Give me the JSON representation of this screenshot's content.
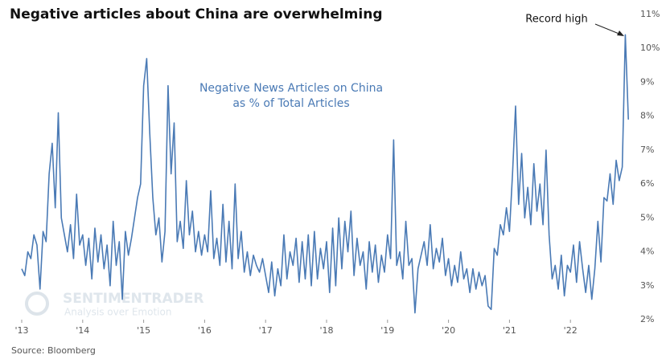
{
  "chart_data": {
    "type": "line",
    "title": "Negative articles about China are overwhelming",
    "subtitle_lines": [
      "Negative News Articles on China",
      "as % of Total Articles"
    ],
    "annotation": "Record high",
    "source": "Source: Bloomberg",
    "watermark": [
      "SENTIMENTRADER",
      "Analysis over Emotion"
    ],
    "color": "#4a7ab5",
    "grid": false,
    "x": [
      2013,
      2013.05,
      2013.1,
      2013.15,
      2013.2,
      2013.25,
      2013.3,
      2013.35,
      2013.4,
      2013.45,
      2013.5,
      2013.55,
      2013.6,
      2013.65,
      2013.7,
      2013.75,
      2013.8,
      2013.85,
      2013.9,
      2013.95,
      2014,
      2014.05,
      2014.1,
      2014.15,
      2014.2,
      2014.25,
      2014.3,
      2014.35,
      2014.4,
      2014.45,
      2014.5,
      2014.55,
      2014.6,
      2014.65,
      2014.7,
      2014.75,
      2014.8,
      2014.85,
      2014.9,
      2014.95,
      2015,
      2015.05,
      2015.1,
      2015.15,
      2015.2,
      2015.25,
      2015.3,
      2015.35,
      2015.4,
      2015.45,
      2015.5,
      2015.55,
      2015.6,
      2015.65,
      2015.7,
      2015.75,
      2015.8,
      2015.85,
      2015.9,
      2015.95,
      2016,
      2016.05,
      2016.1,
      2016.15,
      2016.2,
      2016.25,
      2016.3,
      2016.35,
      2016.4,
      2016.45,
      2016.5,
      2016.55,
      2016.6,
      2016.65,
      2016.7,
      2016.75,
      2016.8,
      2016.85,
      2016.9,
      2016.95,
      2017,
      2017.05,
      2017.1,
      2017.15,
      2017.2,
      2017.25,
      2017.3,
      2017.35,
      2017.4,
      2017.45,
      2017.5,
      2017.55,
      2017.6,
      2017.65,
      2017.7,
      2017.75,
      2017.8,
      2017.85,
      2017.9,
      2017.95,
      2018,
      2018.05,
      2018.1,
      2018.15,
      2018.2,
      2018.25,
      2018.3,
      2018.35,
      2018.4,
      2018.45,
      2018.5,
      2018.55,
      2018.6,
      2018.65,
      2018.7,
      2018.75,
      2018.8,
      2018.85,
      2018.9,
      2018.95,
      2019,
      2019.05,
      2019.1,
      2019.15,
      2019.2,
      2019.25,
      2019.3,
      2019.35,
      2019.4,
      2019.45,
      2019.5,
      2019.55,
      2019.6,
      2019.65,
      2019.7,
      2019.75,
      2019.8,
      2019.85,
      2019.9,
      2019.95,
      2020,
      2020.05,
      2020.1,
      2020.15,
      2020.2,
      2020.25,
      2020.3,
      2020.35,
      2020.4,
      2020.45,
      2020.5,
      2020.55,
      2020.6,
      2020.65,
      2020.7,
      2020.75,
      2020.8,
      2020.85,
      2020.9,
      2020.95,
      2021,
      2021.05,
      2021.1,
      2021.15,
      2021.2,
      2021.25,
      2021.3,
      2021.35,
      2021.4,
      2021.45,
      2021.5,
      2021.55,
      2021.6,
      2021.65,
      2021.7,
      2021.75,
      2021.8,
      2021.85,
      2021.9,
      2021.95,
      2022,
      2022.05,
      2022.1,
      2022.15,
      2022.2,
      2022.25,
      2022.3,
      2022.35,
      2022.4,
      2022.45,
      2022.5,
      2022.55,
      2022.6,
      2022.65,
      2022.7,
      2022.75,
      2022.8,
      2022.85,
      2022.9,
      2022.95
    ],
    "values": [
      3.5,
      3.3,
      4.0,
      3.8,
      4.5,
      4.2,
      2.9,
      4.6,
      4.3,
      6.3,
      7.2,
      5.3,
      8.1,
      5.0,
      4.5,
      4.0,
      4.8,
      3.8,
      5.7,
      4.2,
      4.5,
      3.6,
      4.4,
      3.2,
      4.7,
      3.7,
      4.5,
      3.5,
      4.2,
      3.0,
      4.9,
      3.6,
      4.3,
      2.6,
      4.6,
      3.9,
      4.4,
      5.0,
      5.6,
      6.0,
      8.9,
      9.7,
      7.5,
      5.6,
      4.5,
      5.0,
      3.7,
      4.6,
      8.9,
      6.3,
      7.8,
      4.3,
      4.9,
      4.1,
      6.1,
      4.5,
      5.2,
      4.0,
      4.6,
      3.9,
      4.5,
      4.0,
      5.8,
      3.8,
      4.4,
      3.6,
      5.4,
      3.7,
      4.9,
      3.5,
      6.0,
      3.8,
      4.6,
      3.4,
      4.0,
      3.3,
      3.9,
      3.6,
      3.4,
      3.8,
      3.3,
      2.8,
      3.7,
      2.7,
      3.5,
      3.0,
      4.5,
      3.2,
      4.0,
      3.6,
      4.4,
      3.1,
      4.3,
      3.2,
      4.5,
      3.0,
      4.6,
      3.2,
      4.1,
      3.5,
      4.3,
      2.8,
      4.7,
      3.0,
      5.0,
      3.5,
      4.9,
      4.0,
      5.2,
      3.3,
      4.4,
      3.6,
      4.0,
      2.9,
      4.3,
      3.4,
      4.2,
      3.1,
      3.9,
      3.4,
      4.5,
      3.8,
      7.3,
      3.6,
      4.0,
      3.2,
      4.9,
      3.6,
      3.8,
      2.2,
      3.5,
      3.9,
      4.3,
      3.6,
      4.8,
      3.5,
      4.1,
      3.7,
      4.4,
      3.3,
      3.8,
      3.0,
      3.6,
      3.1,
      4.0,
      3.2,
      3.5,
      2.8,
      3.5,
      2.9,
      3.4,
      3.0,
      3.3,
      2.4,
      2.3,
      4.1,
      3.9,
      4.8,
      4.5,
      5.3,
      4.6,
      6.3,
      8.3,
      5.4,
      6.9,
      5.0,
      5.9,
      4.8,
      6.6,
      5.2,
      6.0,
      4.8,
      7.0,
      4.5,
      3.2,
      3.6,
      2.9,
      3.9,
      2.7,
      3.6,
      3.4,
      4.2,
      3.1,
      4.3,
      3.5,
      2.8,
      3.6,
      2.6,
      3.5,
      4.9,
      3.7,
      5.6,
      5.5,
      6.3,
      5.4,
      6.7,
      6.1,
      6.5,
      10.4,
      7.9
    ],
    "xlim": [
      2013,
      2023
    ],
    "xticks": [
      {
        "value": 2013,
        "label": "'13"
      },
      {
        "value": 2014,
        "label": "'14"
      },
      {
        "value": 2015,
        "label": "'15"
      },
      {
        "value": 2016,
        "label": "'16"
      },
      {
        "value": 2017,
        "label": "'17"
      },
      {
        "value": 2018,
        "label": "'18"
      },
      {
        "value": 2019,
        "label": "'19"
      },
      {
        "value": 2020,
        "label": "'20"
      },
      {
        "value": 2021,
        "label": "'21"
      },
      {
        "value": 2022,
        "label": "'22"
      }
    ],
    "ylim": [
      2,
      11
    ],
    "yticks": [
      {
        "value": 2,
        "label": "2%"
      },
      {
        "value": 3,
        "label": "3%"
      },
      {
        "value": 4,
        "label": "4%"
      },
      {
        "value": 5,
        "label": "5%"
      },
      {
        "value": 6,
        "label": "6%"
      },
      {
        "value": 7,
        "label": "7%"
      },
      {
        "value": 8,
        "label": "8%"
      },
      {
        "value": 9,
        "label": "9%"
      },
      {
        "value": 10,
        "label": "10%"
      },
      {
        "value": 11,
        "label": "11%"
      }
    ]
  }
}
